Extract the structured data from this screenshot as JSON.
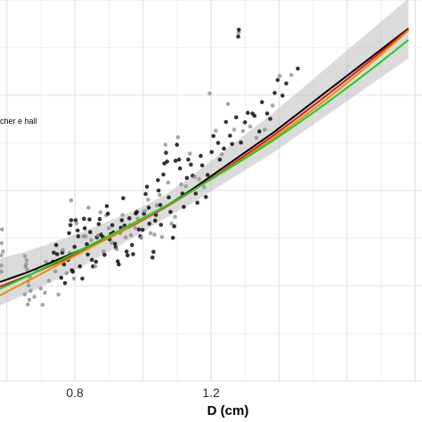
{
  "chart_data": {
    "type": "scatter",
    "title": "",
    "xlabel": "D (cm)",
    "ylabel": "",
    "xlim": [
      0.58,
      1.82
    ],
    "ylim": [
      0,
      1
    ],
    "x_ticks": [
      0.8,
      1.2
    ],
    "x_tick_labels": [
      "0.8",
      "1.2"
    ],
    "grid": true,
    "legend_text_visible": "cher e hall",
    "legend_placement": "left",
    "colors": {
      "points": "#111111",
      "points_faded": "#8a8a8a",
      "band": "#bdbdbd",
      "grid_major": "#e3e3e3",
      "grid_minor": "#f0f0f0"
    },
    "points": [
      [
        0.584,
        0.33
      ],
      [
        0.584,
        0.287
      ],
      [
        0.585,
        0.362
      ],
      [
        0.586,
        0.398
      ],
      [
        0.584,
        0.303
      ],
      [
        0.589,
        0.34
      ],
      [
        0.653,
        0.328
      ],
      [
        0.655,
        0.3
      ],
      [
        0.657,
        0.306
      ],
      [
        0.658,
        0.317
      ],
      [
        0.66,
        0.292
      ],
      [
        0.662,
        0.262
      ],
      [
        0.664,
        0.251
      ],
      [
        0.666,
        0.213
      ],
      [
        0.653,
        0.227
      ],
      [
        0.662,
        0.201
      ],
      [
        0.668,
        0.273
      ],
      [
        0.67,
        0.237
      ],
      [
        0.681,
        0.221
      ],
      [
        0.688,
        0.29
      ],
      [
        0.7,
        0.243
      ],
      [
        0.705,
        0.2
      ],
      [
        0.712,
        0.232
      ],
      [
        0.715,
        0.313
      ],
      [
        0.724,
        0.263
      ],
      [
        0.736,
        0.313
      ],
      [
        0.738,
        0.337
      ],
      [
        0.743,
        0.288
      ],
      [
        0.745,
        0.357
      ],
      [
        0.748,
        0.333
      ],
      [
        0.752,
        0.227
      ],
      [
        0.76,
        0.271
      ],
      [
        0.763,
        0.337
      ],
      [
        0.765,
        0.344
      ],
      [
        0.768,
        0.306
      ],
      [
        0.771,
        0.257
      ],
      [
        0.776,
        0.283
      ],
      [
        0.78,
        0.318
      ],
      [
        0.783,
        0.388
      ],
      [
        0.785,
        0.336
      ],
      [
        0.787,
        0.409
      ],
      [
        0.789,
        0.422
      ],
      [
        0.789,
        0.474
      ],
      [
        0.791,
        0.291
      ],
      [
        0.794,
        0.287
      ],
      [
        0.797,
        0.269
      ],
      [
        0.799,
        0.352
      ],
      [
        0.802,
        0.422
      ],
      [
        0.805,
        0.414
      ],
      [
        0.808,
        0.395
      ],
      [
        0.81,
        0.38
      ],
      [
        0.812,
        0.337
      ],
      [
        0.815,
        0.301
      ],
      [
        0.822,
        0.269
      ],
      [
        0.825,
        0.38
      ],
      [
        0.827,
        0.426
      ],
      [
        0.829,
        0.401
      ],
      [
        0.832,
        0.38
      ],
      [
        0.835,
        0.359
      ],
      [
        0.838,
        0.332
      ],
      [
        0.84,
        0.455
      ],
      [
        0.843,
        0.424
      ],
      [
        0.845,
        0.391
      ],
      [
        0.848,
        0.37
      ],
      [
        0.85,
        0.318
      ],
      [
        0.853,
        0.301
      ],
      [
        0.86,
        0.301
      ],
      [
        0.862,
        0.313
      ],
      [
        0.865,
        0.377
      ],
      [
        0.868,
        0.382
      ],
      [
        0.87,
        0.412
      ],
      [
        0.873,
        0.425
      ],
      [
        0.875,
        0.443
      ],
      [
        0.877,
        0.384
      ],
      [
        0.882,
        0.378
      ],
      [
        0.884,
        0.34
      ],
      [
        0.887,
        0.331
      ],
      [
        0.89,
        0.374
      ],
      [
        0.892,
        0.435
      ],
      [
        0.894,
        0.459
      ],
      [
        0.897,
        0.439
      ],
      [
        0.9,
        0.401
      ],
      [
        0.902,
        0.372
      ],
      [
        0.906,
        0.386
      ],
      [
        0.908,
        0.363
      ],
      [
        0.91,
        0.409
      ],
      [
        0.913,
        0.39
      ],
      [
        0.915,
        0.384
      ],
      [
        0.918,
        0.36
      ],
      [
        0.92,
        0.351
      ],
      [
        0.923,
        0.346
      ],
      [
        0.926,
        0.314
      ],
      [
        0.929,
        0.306
      ],
      [
        0.933,
        0.388
      ],
      [
        0.935,
        0.402
      ],
      [
        0.938,
        0.422
      ],
      [
        0.94,
        0.436
      ],
      [
        0.942,
        0.48
      ],
      [
        0.946,
        0.408
      ],
      [
        0.949,
        0.377
      ],
      [
        0.952,
        0.34
      ],
      [
        0.955,
        0.33
      ],
      [
        0.958,
        0.405
      ],
      [
        0.96,
        0.427
      ],
      [
        0.963,
        0.408
      ],
      [
        0.965,
        0.383
      ],
      [
        0.968,
        0.357
      ],
      [
        0.971,
        0.333
      ],
      [
        0.977,
        0.402
      ],
      [
        0.979,
        0.44
      ],
      [
        0.982,
        0.444
      ],
      [
        0.985,
        0.426
      ],
      [
        0.988,
        0.398
      ],
      [
        0.992,
        0.38
      ],
      [
        0.995,
        0.376
      ],
      [
        0.999,
        0.397
      ],
      [
        1.003,
        0.439
      ],
      [
        1.005,
        0.446
      ],
      [
        1.008,
        0.491
      ],
      [
        1.012,
        0.51
      ],
      [
        1.015,
        0.476
      ],
      [
        1.017,
        0.455
      ],
      [
        1.019,
        0.413
      ],
      [
        1.022,
        0.388
      ],
      [
        1.028,
        0.324
      ],
      [
        1.031,
        0.339
      ],
      [
        1.034,
        0.384
      ],
      [
        1.036,
        0.421
      ],
      [
        1.038,
        0.436
      ],
      [
        1.041,
        0.461
      ],
      [
        1.044,
        0.527
      ],
      [
        1.046,
        0.5
      ],
      [
        1.049,
        0.488
      ],
      [
        1.051,
        0.462
      ],
      [
        1.053,
        0.41
      ],
      [
        1.056,
        0.378
      ],
      [
        1.06,
        0.542
      ],
      [
        1.063,
        0.571
      ],
      [
        1.066,
        0.62
      ],
      [
        1.068,
        0.599
      ],
      [
        1.071,
        0.576
      ],
      [
        1.074,
        0.521
      ],
      [
        1.076,
        0.482
      ],
      [
        1.081,
        0.444
      ],
      [
        1.084,
        0.413
      ],
      [
        1.088,
        0.376
      ],
      [
        1.092,
        0.406
      ],
      [
        1.094,
        0.431
      ],
      [
        1.096,
        0.578
      ],
      [
        1.1,
        0.62
      ],
      [
        1.103,
        0.64
      ],
      [
        1.106,
        0.581
      ],
      [
        1.109,
        0.558
      ],
      [
        1.112,
        0.516
      ],
      [
        1.116,
        0.492
      ],
      [
        1.12,
        0.457
      ],
      [
        1.126,
        0.511
      ],
      [
        1.129,
        0.533
      ],
      [
        1.133,
        0.581
      ],
      [
        1.138,
        0.597
      ],
      [
        1.141,
        0.568
      ],
      [
        1.146,
        0.539
      ],
      [
        1.152,
        0.536
      ],
      [
        1.155,
        0.492
      ],
      [
        1.16,
        0.468
      ],
      [
        1.165,
        0.53
      ],
      [
        1.17,
        0.591
      ],
      [
        1.174,
        0.566
      ],
      [
        1.18,
        0.509
      ],
      [
        1.185,
        0.483
      ],
      [
        1.19,
        0.541
      ],
      [
        1.196,
        0.755
      ],
      [
        1.202,
        0.601
      ],
      [
        1.207,
        0.643
      ],
      [
        1.214,
        0.657
      ],
      [
        1.221,
        0.625
      ],
      [
        1.226,
        0.581
      ],
      [
        1.232,
        0.595
      ],
      [
        1.238,
        0.61
      ],
      [
        1.244,
        0.68
      ],
      [
        1.25,
        0.727
      ],
      [
        1.256,
        0.644
      ],
      [
        1.262,
        0.622
      ],
      [
        1.268,
        0.66
      ],
      [
        1.274,
        0.692
      ],
      [
        1.28,
        0.904
      ],
      [
        1.281,
        0.914
      ],
      [
        1.282,
        0.922
      ],
      [
        1.288,
        0.626
      ],
      [
        1.294,
        0.656
      ],
      [
        1.3,
        0.679
      ],
      [
        1.308,
        0.704
      ],
      [
        1.315,
        0.668
      ],
      [
        1.322,
        0.702
      ],
      [
        1.328,
        0.696
      ],
      [
        1.333,
        0.638
      ],
      [
        1.342,
        0.655
      ],
      [
        1.35,
        0.732
      ],
      [
        1.358,
        0.66
      ],
      [
        1.365,
        0.702
      ],
      [
        1.374,
        0.688
      ],
      [
        1.381,
        0.723
      ],
      [
        1.387,
        0.756
      ],
      [
        1.396,
        0.79
      ],
      [
        1.402,
        0.801
      ],
      [
        1.41,
        0.749
      ],
      [
        1.421,
        0.781
      ],
      [
        1.436,
        0.803
      ],
      [
        1.455,
        0.82
      ]
    ],
    "series": [
      {
        "name": "",
        "color": "#000000",
        "x": [
          0.58,
          0.66,
          0.74,
          0.82,
          0.9,
          0.98,
          1.06,
          1.14,
          1.22,
          1.3,
          1.38,
          1.46,
          1.54,
          1.62,
          1.7,
          1.78
        ],
        "y": [
          0.26,
          0.285,
          0.315,
          0.345,
          0.38,
          0.415,
          0.455,
          0.5,
          0.55,
          0.6,
          0.65,
          0.705,
          0.76,
          0.815,
          0.87,
          0.925
        ]
      },
      {
        "name": "",
        "color": "#e01515",
        "x": [
          0.58,
          0.66,
          0.74,
          0.82,
          0.9,
          0.98,
          1.06,
          1.14,
          1.22,
          1.3,
          1.38,
          1.46,
          1.54,
          1.62,
          1.7,
          1.78
        ],
        "y": [
          0.248,
          0.276,
          0.307,
          0.34,
          0.376,
          0.413,
          0.453,
          0.496,
          0.543,
          0.592,
          0.642,
          0.695,
          0.75,
          0.806,
          0.864,
          0.923
        ]
      },
      {
        "name": "",
        "color": "#f08c00",
        "x": [
          0.58,
          0.66,
          0.74,
          0.82,
          0.9,
          0.98,
          1.06,
          1.14,
          1.22,
          1.3,
          1.38,
          1.46,
          1.54,
          1.62,
          1.7,
          1.78
        ],
        "y": [
          0.225,
          0.262,
          0.3,
          0.338,
          0.376,
          0.415,
          0.455,
          0.497,
          0.541,
          0.587,
          0.635,
          0.686,
          0.74,
          0.797,
          0.857,
          0.92
        ]
      },
      {
        "name": "",
        "color": "#1fcc1f",
        "x": [
          0.58,
          0.66,
          0.74,
          0.82,
          0.9,
          0.98,
          1.06,
          1.14,
          1.22,
          1.3,
          1.38,
          1.46,
          1.54,
          1.62,
          1.7,
          1.78
        ],
        "y": [
          0.242,
          0.275,
          0.31,
          0.345,
          0.381,
          0.418,
          0.456,
          0.497,
          0.54,
          0.584,
          0.63,
          0.679,
          0.73,
          0.783,
          0.838,
          0.895
        ]
      }
    ]
  }
}
